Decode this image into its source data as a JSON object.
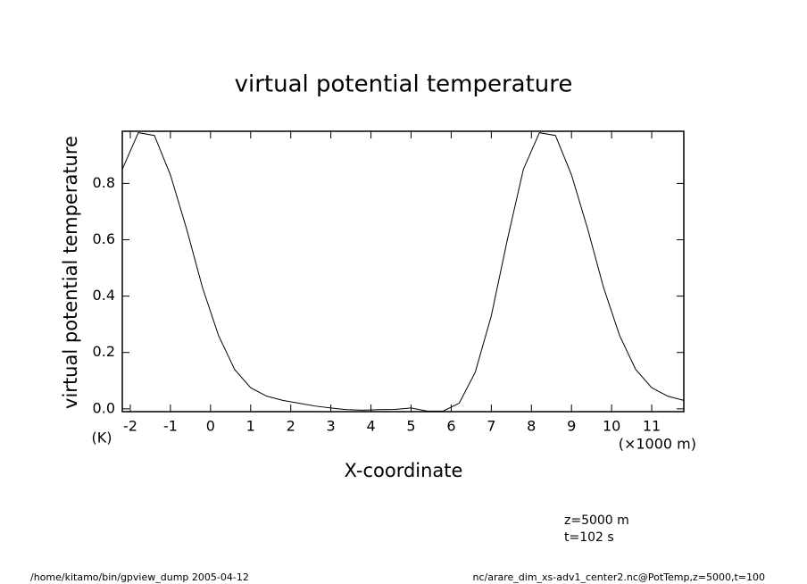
{
  "chart_data": {
    "type": "line",
    "title": "virtual potential temperature",
    "y_label": "virtual potential temperature",
    "y_unit": "(K)",
    "x_label": "X-coordinate",
    "x_unit": "(×1000 m)",
    "annotations": [
      "z=5000  m",
      "t=102  s"
    ],
    "footer_left": "/home/kitamo/bin/gpview_dump  2005-04-12",
    "footer_right": "nc/arare_dim_xs-adv1_center2.nc@PotTemp,z=5000,t=100",
    "x": [
      -2.2,
      -1.8,
      -1.4,
      -1.0,
      -0.6,
      -0.2,
      0.2,
      0.6,
      1.0,
      1.4,
      1.8,
      2.2,
      2.6,
      3.0,
      3.4,
      3.8,
      4.2,
      4.6,
      5.0,
      5.4,
      5.8,
      6.2,
      6.6,
      7.0,
      7.4,
      7.8,
      8.2,
      8.6,
      9.0,
      9.4,
      9.8,
      10.2,
      10.6,
      11.0,
      11.4,
      11.8
    ],
    "series": [
      {
        "color": "#000000",
        "values": [
          0.85,
          0.98,
          0.97,
          0.83,
          0.64,
          0.43,
          0.26,
          0.14,
          0.075,
          0.045,
          0.03,
          0.02,
          0.01,
          0.003,
          -0.003,
          -0.005,
          -0.003,
          -0.002,
          0.003,
          -0.008,
          -0.008,
          0.02,
          0.13,
          0.33,
          0.6,
          0.85,
          0.98,
          0.97,
          0.83,
          0.64,
          0.43,
          0.26,
          0.14,
          0.075,
          0.045,
          0.03
        ]
      }
    ],
    "xlim": [
      -2.2,
      11.8
    ],
    "ylim": [
      -0.01,
      0.985
    ],
    "xticks": [
      -2,
      -1,
      0,
      1,
      2,
      3,
      4,
      5,
      6,
      7,
      8,
      9,
      10,
      11
    ],
    "yticks": [
      {
        "value": 0,
        "label": "0.0"
      },
      0.2,
      0.4,
      0.6,
      0.8
    ]
  }
}
